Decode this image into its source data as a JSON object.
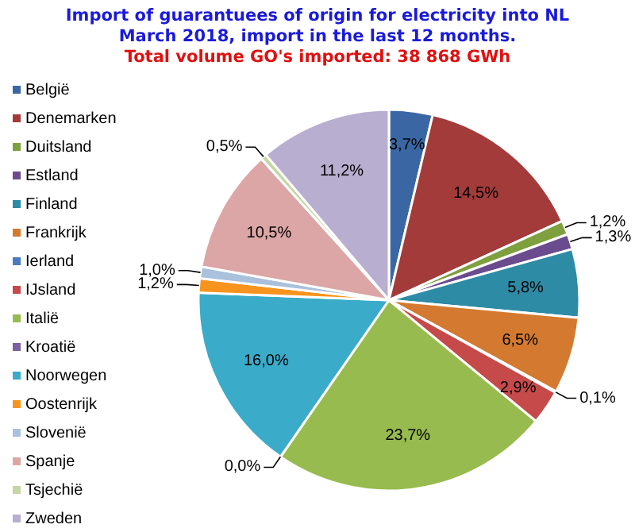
{
  "chart_data": {
    "type": "pie",
    "title": "Import of guarantuees of origin for electricity into NL\nMarch  2018, import in the last 12 months.",
    "subtitle": "Total volume GO's imported: 38 868 GWh",
    "categories": [
      "België",
      "Denemarken",
      "Duitsland",
      "Estland",
      "Finland",
      "Frankrijk",
      "Ierland",
      "IJsland",
      "Italië",
      "Kroatië",
      "Noorwegen",
      "Oostenrijk",
      "Slovenië",
      "Spanje",
      "Tsjechië",
      "Zweden"
    ],
    "values": [
      3.7,
      14.5,
      1.2,
      1.3,
      5.8,
      6.5,
      0.1,
      2.9,
      23.7,
      0.0,
      16.0,
      1.2,
      1.0,
      10.5,
      0.5,
      11.2
    ],
    "value_labels": [
      "3,7%",
      "14,5%",
      "1,2%",
      "1,3%",
      "5,8%",
      "6,5%",
      "0,1%",
      "2,9%",
      "23,7%",
      "0,0%",
      "16,0%",
      "1,2%",
      "1,0%",
      "10,5%",
      "0,5%",
      "11,2%"
    ],
    "colors": [
      "#3a67a4",
      "#a23b3a",
      "#7ea03f",
      "#6a4c8e",
      "#2d8ba5",
      "#d47a30",
      "#4a7bc0",
      "#c64a4a",
      "#98bb4f",
      "#7d62a0",
      "#3aabc8",
      "#f7941d",
      "#a9c1dd",
      "#dba6a5",
      "#c4d6a4",
      "#b8aed0"
    ],
    "legend": "left"
  }
}
